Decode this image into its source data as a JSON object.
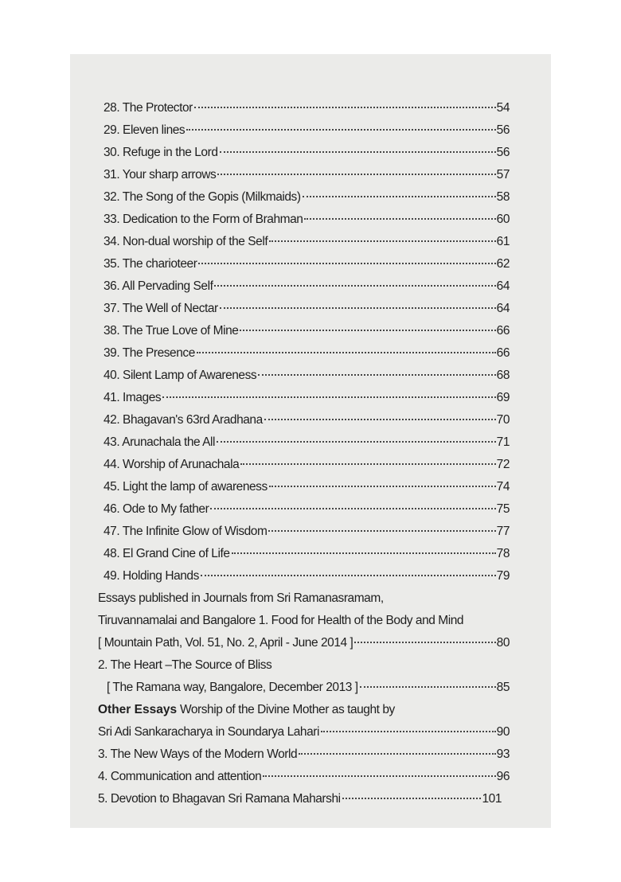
{
  "entries": [
    {
      "title": "28. The Protector",
      "page": "54"
    },
    {
      "title": "29. Eleven lines",
      "page": "56"
    },
    {
      "title": "30. Refuge in the Lord",
      "page": "56"
    },
    {
      "title": "31. Your sharp arrows",
      "page": "57"
    },
    {
      "title": "32. The Song of the Gopis (Milkmaids)",
      "page": "58"
    },
    {
      "title": "33. Dedication to the Form of Brahman",
      "page": "60"
    },
    {
      "title": "34. Non-dual worship of the Self",
      "page": "61"
    },
    {
      "title": "35. The charioteer",
      "page": "62"
    },
    {
      "title": "36. All Pervading Self",
      "page": "64"
    },
    {
      "title": "37. The Well of Nectar",
      "page": "64"
    },
    {
      "title": "38. The True Love of Mine",
      "page": "66"
    },
    {
      "title": "39. The Presence",
      "page": "66"
    },
    {
      "title": "40. Silent Lamp of Awareness",
      "page": "68"
    },
    {
      "title": "41. Images",
      "page": "69"
    },
    {
      "title": "42. Bhagavan's 63rd Aradhana",
      "page": "70"
    },
    {
      "title": "43. Arunachala the All",
      "page": "71"
    },
    {
      "title": "44. Worship of Arunachala",
      "page": "72"
    },
    {
      "title": "45. Light the lamp of awareness",
      "page": "74"
    },
    {
      "title": "46. Ode to My father",
      "page": "75"
    },
    {
      "title": "47. The Infinite Glow of Wisdom",
      "page": "77"
    },
    {
      "title": "48. El Grand Cine of Life",
      "page": "78"
    },
    {
      "title": "49. Holding Hands",
      "page": "79"
    }
  ],
  "essays": {
    "intro1": "Essays published in Journals from Sri Ramanasramam,",
    "intro2": "Tiruvannamalai and Bangalore 1. Food for Health of the Body and Mind",
    "e1_source": "[ Mountain Path, Vol. 51, No. 2, April - June 2014 ]",
    "e1_page": "80",
    "e2_title": "2. The Heart –The Source of Bliss",
    "e2_source": "[ The Ramana way, Bangalore, December 2013 ]",
    "e2_page": "85",
    "other_heading": "Other Essays",
    "other_intro": " Worship of the Divine Mother as taught by",
    "o1_title": "Sri Adi Sankaracharya in Soundarya Lahari",
    "o1_page": "90",
    "o3_title": "3. The New Ways of the Modern World",
    "o3_page": "93",
    "o4_title": "4. Communication and attention",
    "o4_page": "96",
    "o5_title": "5. Devotion to Bhagavan Sri Ramana Maharshi",
    "o5_page": "101"
  }
}
